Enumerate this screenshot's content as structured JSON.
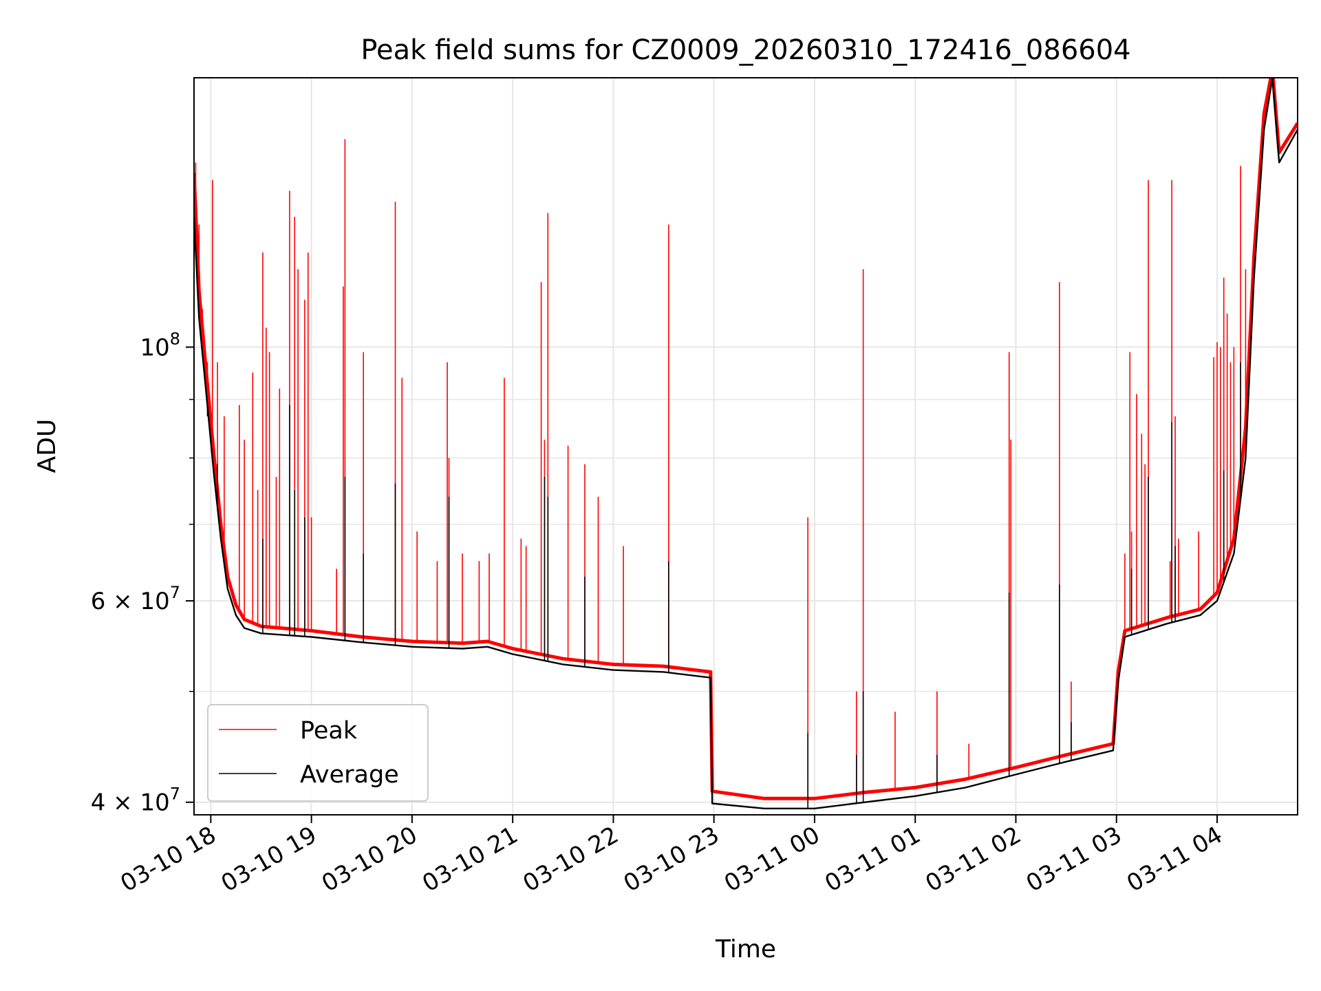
{
  "chart_data": {
    "type": "line",
    "title": "Peak field sums for CZ0009_20260310_172416_086604",
    "xlabel": "Time",
    "ylabel": "ADU",
    "yscale": "log",
    "ylim": [
      39000000,
      172000000
    ],
    "xlim": [
      "2026-03-10T17:50",
      "2026-03-11T04:48"
    ],
    "grid": true,
    "legend_position": "lower-left",
    "x_ticks": [
      {
        "t": "2026-03-10T18:00",
        "label": "03-10 18"
      },
      {
        "t": "2026-03-10T19:00",
        "label": "03-10 19"
      },
      {
        "t": "2026-03-10T20:00",
        "label": "03-10 20"
      },
      {
        "t": "2026-03-10T21:00",
        "label": "03-10 21"
      },
      {
        "t": "2026-03-10T22:00",
        "label": "03-10 22"
      },
      {
        "t": "2026-03-10T23:00",
        "label": "03-10 23"
      },
      {
        "t": "2026-03-11T00:00",
        "label": "03-11 00"
      },
      {
        "t": "2026-03-11T01:00",
        "label": "03-11 01"
      },
      {
        "t": "2026-03-11T02:00",
        "label": "03-11 02"
      },
      {
        "t": "2026-03-11T03:00",
        "label": "03-11 03"
      },
      {
        "t": "2026-03-11T04:00",
        "label": "03-11 04"
      }
    ],
    "y_ticks_major": [
      {
        "v": 40000000,
        "base": "4",
        "exp": "7"
      },
      {
        "v": 60000000,
        "base": "6",
        "exp": "7"
      },
      {
        "v": 100000000,
        "base": "10",
        "exp": "8"
      }
    ],
    "y_ticks_minor": [
      50000000,
      70000000,
      80000000,
      90000000
    ],
    "series": [
      {
        "name": "Peak",
        "color": "#ff0000",
        "baseline": [
          [
            "2026-03-10T17:50",
            142000000
          ],
          [
            "2026-03-10T17:53",
            112000000
          ],
          [
            "2026-03-10T17:57",
            96000000
          ],
          [
            "2026-03-10T18:02",
            80000000
          ],
          [
            "2026-03-10T18:06",
            70000000
          ],
          [
            "2026-03-10T18:10",
            63000000
          ],
          [
            "2026-03-10T18:15",
            59500000
          ],
          [
            "2026-03-10T18:20",
            57800000
          ],
          [
            "2026-03-10T18:30",
            57000000
          ],
          [
            "2026-03-10T19:00",
            56500000
          ],
          [
            "2026-03-10T19:30",
            55800000
          ],
          [
            "2026-03-10T20:00",
            55300000
          ],
          [
            "2026-03-10T20:30",
            55100000
          ],
          [
            "2026-03-10T20:45",
            55300000
          ],
          [
            "2026-03-10T21:00",
            54500000
          ],
          [
            "2026-03-10T21:30",
            53400000
          ],
          [
            "2026-03-10T22:00",
            52800000
          ],
          [
            "2026-03-10T22:30",
            52600000
          ],
          [
            "2026-03-10T22:58",
            52000000
          ],
          [
            "2026-03-10T22:59",
            40900000
          ],
          [
            "2026-03-10T23:30",
            40300000
          ],
          [
            "2026-03-11T00:00",
            40300000
          ],
          [
            "2026-03-11T00:30",
            40800000
          ],
          [
            "2026-03-11T01:00",
            41200000
          ],
          [
            "2026-03-11T01:30",
            41900000
          ],
          [
            "2026-03-11T02:00",
            42900000
          ],
          [
            "2026-03-11T02:30",
            44000000
          ],
          [
            "2026-03-11T02:58",
            45000000
          ],
          [
            "2026-03-11T03:01",
            52000000
          ],
          [
            "2026-03-11T03:05",
            56500000
          ],
          [
            "2026-03-11T03:30",
            58000000
          ],
          [
            "2026-03-11T03:50",
            59000000
          ],
          [
            "2026-03-11T04:00",
            61000000
          ],
          [
            "2026-03-11T04:10",
            68000000
          ],
          [
            "2026-03-11T04:17",
            85000000
          ],
          [
            "2026-03-11T04:22",
            120000000
          ],
          [
            "2026-03-11T04:28",
            160000000
          ],
          [
            "2026-03-11T04:33",
            175000000
          ],
          [
            "2026-03-11T04:37",
            148000000
          ],
          [
            "2026-03-11T04:48",
            157000000
          ]
        ],
        "spikes": [
          [
            "2026-03-10T17:51",
            145000000
          ],
          [
            "2026-03-10T17:53",
            128000000
          ],
          [
            "2026-03-10T17:55",
            108000000
          ],
          [
            "2026-03-10T17:58",
            97000000
          ],
          [
            "2026-03-10T18:01",
            140000000
          ],
          [
            "2026-03-10T18:04",
            97000000
          ],
          [
            "2026-03-10T18:08",
            87000000
          ],
          [
            "2026-03-10T18:17",
            89000000
          ],
          [
            "2026-03-10T18:20",
            83000000
          ],
          [
            "2026-03-10T18:25",
            95000000
          ],
          [
            "2026-03-10T18:28",
            75000000
          ],
          [
            "2026-03-10T18:31",
            121000000
          ],
          [
            "2026-03-10T18:33",
            104000000
          ],
          [
            "2026-03-10T18:35",
            99000000
          ],
          [
            "2026-03-10T18:39",
            77000000
          ],
          [
            "2026-03-10T18:41",
            92000000
          ],
          [
            "2026-03-10T18:47",
            137000000
          ],
          [
            "2026-03-10T18:50",
            130000000
          ],
          [
            "2026-03-10T18:52",
            117000000
          ],
          [
            "2026-03-10T18:56",
            110000000
          ],
          [
            "2026-03-10T18:58",
            121000000
          ],
          [
            "2026-03-10T19:00",
            71000000
          ],
          [
            "2026-03-10T19:15",
            64000000
          ],
          [
            "2026-03-10T19:19",
            113000000
          ],
          [
            "2026-03-10T19:20",
            152000000
          ],
          [
            "2026-03-10T19:31",
            99000000
          ],
          [
            "2026-03-10T19:50",
            134000000
          ],
          [
            "2026-03-10T19:54",
            94000000
          ],
          [
            "2026-03-10T20:03",
            69000000
          ],
          [
            "2026-03-10T20:15",
            65000000
          ],
          [
            "2026-03-10T20:21",
            97000000
          ],
          [
            "2026-03-10T20:22",
            80000000
          ],
          [
            "2026-03-10T20:30",
            66000000
          ],
          [
            "2026-03-10T20:40",
            65000000
          ],
          [
            "2026-03-10T20:46",
            66000000
          ],
          [
            "2026-03-10T20:55",
            94000000
          ],
          [
            "2026-03-10T21:05",
            68000000
          ],
          [
            "2026-03-10T21:08",
            67000000
          ],
          [
            "2026-03-10T21:17",
            114000000
          ],
          [
            "2026-03-10T21:19",
            83000000
          ],
          [
            "2026-03-10T21:21",
            131000000
          ],
          [
            "2026-03-10T21:33",
            82000000
          ],
          [
            "2026-03-10T21:43",
            79000000
          ],
          [
            "2026-03-10T21:51",
            74000000
          ],
          [
            "2026-03-10T22:06",
            67000000
          ],
          [
            "2026-03-10T22:33",
            128000000
          ],
          [
            "2026-03-10T23:56",
            71000000
          ],
          [
            "2026-03-11T00:25",
            50000000
          ],
          [
            "2026-03-11T00:29",
            117000000
          ],
          [
            "2026-03-11T00:48",
            48000000
          ],
          [
            "2026-03-11T01:13",
            50000000
          ],
          [
            "2026-03-11T01:32",
            45000000
          ],
          [
            "2026-03-11T01:56",
            99000000
          ],
          [
            "2026-03-11T01:57",
            83000000
          ],
          [
            "2026-03-11T02:26",
            114000000
          ],
          [
            "2026-03-11T02:33",
            51000000
          ],
          [
            "2026-03-11T03:05",
            66000000
          ],
          [
            "2026-03-11T03:08",
            99000000
          ],
          [
            "2026-03-11T03:09",
            69000000
          ],
          [
            "2026-03-11T03:12",
            91000000
          ],
          [
            "2026-03-11T03:15",
            84000000
          ],
          [
            "2026-03-11T03:17",
            79000000
          ],
          [
            "2026-03-11T03:19",
            140000000
          ],
          [
            "2026-03-11T03:32",
            65000000
          ],
          [
            "2026-03-11T03:33",
            140000000
          ],
          [
            "2026-03-11T03:35",
            87000000
          ],
          [
            "2026-03-11T03:37",
            68000000
          ],
          [
            "2026-03-11T03:49",
            69000000
          ],
          [
            "2026-03-11T03:58",
            98000000
          ],
          [
            "2026-03-11T04:00",
            101000000
          ],
          [
            "2026-03-11T04:02",
            100000000
          ],
          [
            "2026-03-11T04:04",
            115000000
          ],
          [
            "2026-03-11T04:06",
            107000000
          ],
          [
            "2026-03-11T04:08",
            97000000
          ],
          [
            "2026-03-11T04:10",
            100000000
          ],
          [
            "2026-03-11T04:14",
            144000000
          ],
          [
            "2026-03-11T04:17",
            117000000
          ]
        ]
      },
      {
        "name": "Average",
        "color": "#000000",
        "baseline": [
          [
            "2026-03-10T17:50",
            130000000
          ],
          [
            "2026-03-10T17:53",
            106000000
          ],
          [
            "2026-03-10T17:57",
            92000000
          ],
          [
            "2026-03-10T18:02",
            77000000
          ],
          [
            "2026-03-10T18:06",
            68000000
          ],
          [
            "2026-03-10T18:10",
            61500000
          ],
          [
            "2026-03-10T18:15",
            58300000
          ],
          [
            "2026-03-10T18:20",
            56800000
          ],
          [
            "2026-03-10T18:30",
            56200000
          ],
          [
            "2026-03-10T19:00",
            55800000
          ],
          [
            "2026-03-10T19:30",
            55200000
          ],
          [
            "2026-03-10T20:00",
            54700000
          ],
          [
            "2026-03-10T20:30",
            54500000
          ],
          [
            "2026-03-10T20:45",
            54700000
          ],
          [
            "2026-03-10T21:00",
            53900000
          ],
          [
            "2026-03-10T21:30",
            52800000
          ],
          [
            "2026-03-10T22:00",
            52200000
          ],
          [
            "2026-03-10T22:30",
            52000000
          ],
          [
            "2026-03-10T22:58",
            51400000
          ],
          [
            "2026-03-10T22:59",
            39900000
          ],
          [
            "2026-03-10T23:30",
            39500000
          ],
          [
            "2026-03-11T00:00",
            39500000
          ],
          [
            "2026-03-11T00:30",
            40000000
          ],
          [
            "2026-03-11T01:00",
            40500000
          ],
          [
            "2026-03-11T01:30",
            41200000
          ],
          [
            "2026-03-11T02:00",
            42300000
          ],
          [
            "2026-03-11T02:30",
            43400000
          ],
          [
            "2026-03-11T02:58",
            44400000
          ],
          [
            "2026-03-11T03:01",
            51000000
          ],
          [
            "2026-03-11T03:05",
            55800000
          ],
          [
            "2026-03-11T03:30",
            57300000
          ],
          [
            "2026-03-11T03:50",
            58300000
          ],
          [
            "2026-03-11T04:00",
            60000000
          ],
          [
            "2026-03-11T04:10",
            66000000
          ],
          [
            "2026-03-11T04:17",
            80000000
          ],
          [
            "2026-03-11T04:22",
            115000000
          ],
          [
            "2026-03-11T04:28",
            155000000
          ],
          [
            "2026-03-11T04:33",
            172000000
          ],
          [
            "2026-03-11T04:37",
            145000000
          ],
          [
            "2026-03-11T04:48",
            155000000
          ]
        ],
        "spikes": [
          [
            "2026-03-10T17:58",
            87000000
          ],
          [
            "2026-03-10T18:04",
            79000000
          ],
          [
            "2026-03-10T18:31",
            68000000
          ],
          [
            "2026-03-10T18:47",
            89000000
          ],
          [
            "2026-03-10T18:50",
            75000000
          ],
          [
            "2026-03-10T18:56",
            71000000
          ],
          [
            "2026-03-10T19:20",
            77000000
          ],
          [
            "2026-03-10T19:31",
            66000000
          ],
          [
            "2026-03-10T19:50",
            76000000
          ],
          [
            "2026-03-10T20:22",
            74000000
          ],
          [
            "2026-03-10T21:19",
            77000000
          ],
          [
            "2026-03-10T21:21",
            74000000
          ],
          [
            "2026-03-10T21:43",
            63000000
          ],
          [
            "2026-03-10T22:33",
            65000000
          ],
          [
            "2026-03-10T23:56",
            46000000
          ],
          [
            "2026-03-11T00:25",
            44000000
          ],
          [
            "2026-03-11T00:29",
            50000000
          ],
          [
            "2026-03-11T01:13",
            44000000
          ],
          [
            "2026-03-11T01:56",
            61000000
          ],
          [
            "2026-03-11T02:26",
            62000000
          ],
          [
            "2026-03-11T02:33",
            47000000
          ],
          [
            "2026-03-11T03:09",
            64000000
          ],
          [
            "2026-03-11T03:19",
            77000000
          ],
          [
            "2026-03-11T03:33",
            86000000
          ],
          [
            "2026-03-11T03:35",
            67000000
          ],
          [
            "2026-03-11T04:04",
            78000000
          ],
          [
            "2026-03-11T04:14",
            97000000
          ]
        ]
      }
    ]
  }
}
